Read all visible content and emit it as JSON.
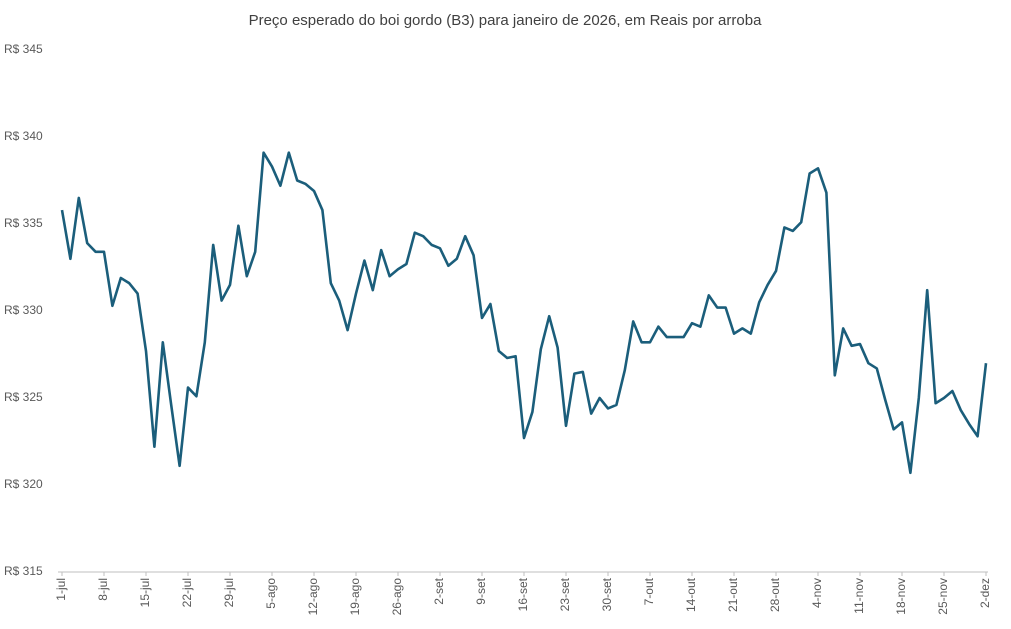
{
  "chart_data": {
    "type": "line",
    "title": "Preço esperado do boi gordo (B3) para janeiro de 2026, em Reais por arroba",
    "categories": [
      "1-jul",
      null,
      null,
      null,
      null,
      "8-jul",
      null,
      null,
      null,
      null,
      "15-jul",
      null,
      null,
      null,
      null,
      "22-jul",
      null,
      null,
      null,
      null,
      "29-jul",
      null,
      null,
      null,
      null,
      "5-ago",
      null,
      null,
      null,
      null,
      "12-ago",
      null,
      null,
      null,
      null,
      "19-ago",
      null,
      null,
      null,
      null,
      "26-ago",
      null,
      null,
      null,
      null,
      "2-set",
      null,
      null,
      null,
      null,
      "9-set",
      null,
      null,
      null,
      null,
      "16-set",
      null,
      null,
      null,
      null,
      "23-set",
      null,
      null,
      null,
      null,
      "30-set",
      null,
      null,
      null,
      null,
      "7-out",
      null,
      null,
      null,
      null,
      "14-out",
      null,
      null,
      null,
      null,
      "21-out",
      null,
      null,
      null,
      null,
      "28-out",
      null,
      null,
      null,
      null,
      "4-nov",
      null,
      null,
      null,
      null,
      "11-nov",
      null,
      null,
      null,
      null,
      "18-nov",
      null,
      null,
      null,
      null,
      "25-nov",
      null,
      null,
      null,
      null,
      "2-dez"
    ],
    "series": [
      {
        "color": "#1b5e7b",
        "values": [
          335.8,
          333.0,
          336.5,
          333.9,
          333.4,
          333.4,
          330.3,
          331.9,
          331.6,
          331.0,
          327.7,
          322.2,
          328.2,
          324.6,
          321.1,
          325.6,
          325.1,
          328.2,
          333.8,
          330.6,
          331.5,
          334.9,
          332.0,
          333.4,
          339.1,
          338.3,
          337.2,
          339.1,
          337.5,
          337.3,
          336.9,
          335.8,
          331.6,
          330.6,
          328.9,
          331.0,
          332.9,
          331.2,
          333.5,
          332.0,
          332.4,
          332.7,
          334.5,
          334.3,
          333.8,
          333.6,
          332.6,
          333.0,
          334.3,
          333.2,
          329.6,
          330.4,
          327.7,
          327.3,
          327.4,
          322.7,
          324.2,
          327.8,
          329.7,
          327.9,
          323.4,
          326.4,
          326.5,
          324.1,
          325.0,
          324.4,
          324.6,
          326.6,
          329.4,
          328.2,
          328.2,
          329.1,
          328.5,
          328.5,
          328.5,
          329.3,
          329.1,
          330.9,
          330.2,
          330.2,
          328.7,
          329.0,
          328.7,
          330.5,
          331.5,
          332.3,
          334.8,
          334.6,
          335.1,
          337.9,
          338.2,
          336.8,
          326.3,
          329.0,
          328.0,
          328.1,
          327.0,
          326.7,
          324.9,
          323.2,
          323.6,
          320.7,
          325.0,
          331.2,
          324.7,
          325.0,
          325.4,
          324.3,
          323.5,
          322.8,
          327.0
        ]
      }
    ],
    "ylim": [
      315,
      345
    ],
    "yticks": [
      {
        "value": 315,
        "label": "R$ 315"
      },
      {
        "value": 320,
        "label": "R$ 320"
      },
      {
        "value": 325,
        "label": "R$ 325"
      },
      {
        "value": 330,
        "label": "R$ 330"
      },
      {
        "value": 335,
        "label": "R$ 335"
      },
      {
        "value": 340,
        "label": "R$ 340"
      },
      {
        "value": 345,
        "label": "R$ 345"
      }
    ],
    "grid": false
  }
}
